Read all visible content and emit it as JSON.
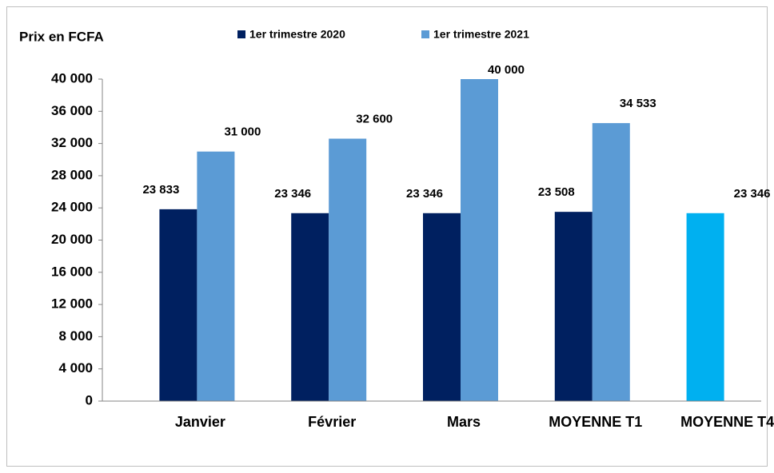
{
  "chart_data": {
    "type": "bar",
    "y_label": "Prix en FCFA",
    "categories": [
      "Janvier",
      "Février",
      "Mars",
      "MOYENNE T1",
      "MOYENNE T4"
    ],
    "series": [
      {
        "name": "1er trimestre 2020",
        "color": "#002060",
        "colors": [
          "#002060",
          "#002060",
          "#002060",
          "#002060",
          "#00b0f0"
        ],
        "values": [
          23833,
          23346,
          23346,
          23508,
          23346
        ],
        "value_labels": [
          "23 833",
          "23 346",
          "23 346",
          "23 508",
          "23 346"
        ]
      },
      {
        "name": "1er trimestre 2021",
        "color": "#5b9bd5",
        "values": [
          31000,
          32600,
          40000,
          34533,
          null
        ],
        "value_labels": [
          "31 000",
          "32 600",
          "40 000",
          "34 533",
          null
        ]
      }
    ],
    "ylim": [
      0,
      40000
    ],
    "yticks": [
      0,
      {
        "value": 4000,
        "label": "4 000"
      },
      {
        "value": 8000,
        "label": "8 000"
      },
      {
        "value": 12000,
        "label": "12 000"
      },
      {
        "value": 16000,
        "label": "16 000"
      },
      {
        "value": 20000,
        "label": "20 000"
      },
      {
        "value": 24000,
        "label": "24 000"
      },
      {
        "value": 28000,
        "label": "28 000"
      },
      {
        "value": 32000,
        "label": "32 000"
      },
      {
        "value": 36000,
        "label": "36 000"
      },
      {
        "value": 40000,
        "label": "40 000"
      }
    ],
    "grid": false,
    "legend": "top"
  }
}
